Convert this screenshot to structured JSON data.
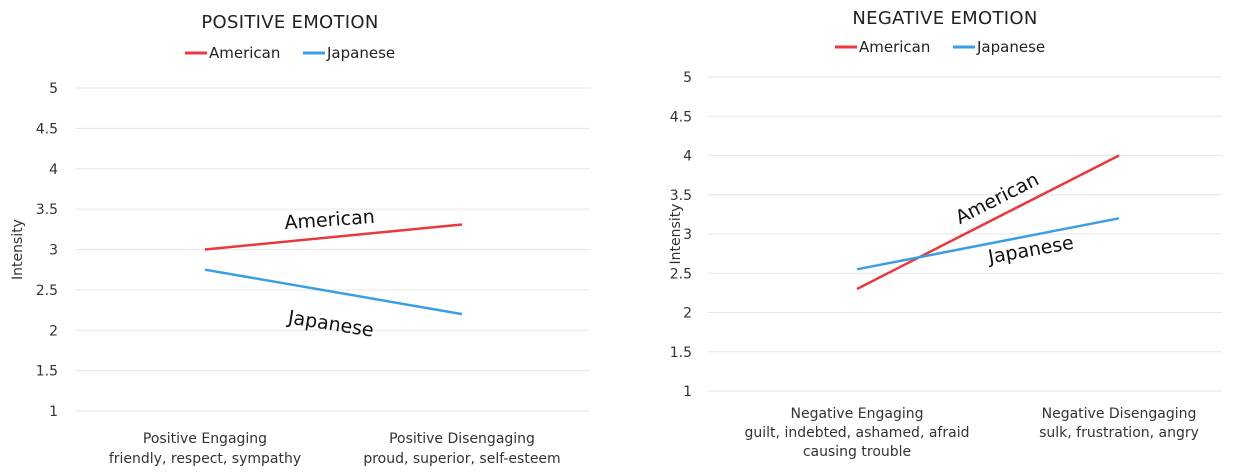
{
  "chart_data": [
    {
      "type": "line",
      "title": "POSITIVE EMOTION",
      "ylabel": "Intensity",
      "ylim": [
        1,
        5
      ],
      "yticks": [
        "1",
        "1.5",
        "2",
        "2.5",
        "3",
        "3.5",
        "4",
        "4.5",
        "5"
      ],
      "grid": true,
      "legend_position": "top",
      "categories": [
        [
          "Positive Engaging",
          "friendly, respect, sympathy"
        ],
        [
          "Positive Disengaging",
          "proud, superior, self-esteem"
        ]
      ],
      "series": [
        {
          "name": "American",
          "values": [
            3.0,
            3.31
          ],
          "color": "#e8393e",
          "label": "American"
        },
        {
          "name": "Japanese",
          "values": [
            2.75,
            2.2
          ],
          "color": "#3a9ee4",
          "label": "Japanese"
        }
      ]
    },
    {
      "type": "line",
      "title": "NEGATIVE EMOTION",
      "ylabel": "Intensity",
      "ylim": [
        1,
        5
      ],
      "yticks": [
        "1",
        "1.5",
        "2",
        "2.5",
        "3",
        "3.5",
        "4",
        "4.5",
        "5"
      ],
      "grid": true,
      "legend_position": "top",
      "categories": [
        [
          "Negative Engaging",
          "guilt, indebted, ashamed, afraid",
          "causing trouble"
        ],
        [
          "Negative Disengaging",
          "sulk, frustration, angry"
        ]
      ],
      "series": [
        {
          "name": "American",
          "values": [
            2.3,
            4.0
          ],
          "color": "#e8393e",
          "label": "American"
        },
        {
          "name": "Japanese",
          "values": [
            2.55,
            3.2
          ],
          "color": "#3a9ee4",
          "label": "Japanese"
        }
      ]
    }
  ]
}
